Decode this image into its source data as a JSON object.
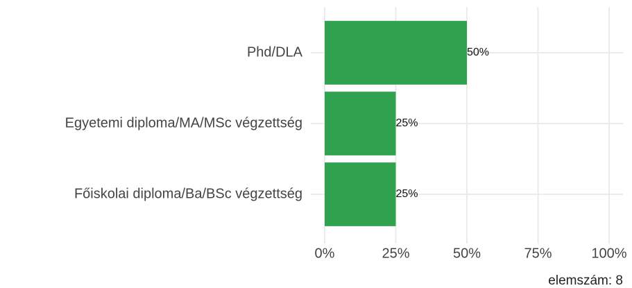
{
  "chart_data": {
    "type": "bar",
    "orientation": "horizontal",
    "categories": [
      "Phd/DLA",
      "Egyetemi diploma/MA/MSc végzettség",
      "Főiskolai diploma/Ba/BSc végzettség"
    ],
    "values": [
      50,
      25,
      25
    ],
    "value_labels": [
      "50%",
      "25%",
      "25%"
    ],
    "color": "#31a350",
    "xlim": [
      0,
      100
    ],
    "xticks": [
      {
        "value": 0,
        "label": "0%"
      },
      {
        "value": 25,
        "label": "25%"
      },
      {
        "value": 50,
        "label": "50%"
      },
      {
        "value": 75,
        "label": "75%"
      },
      {
        "value": 100,
        "label": "100%"
      }
    ],
    "grid": true,
    "footnote": "elemszám: 8"
  }
}
